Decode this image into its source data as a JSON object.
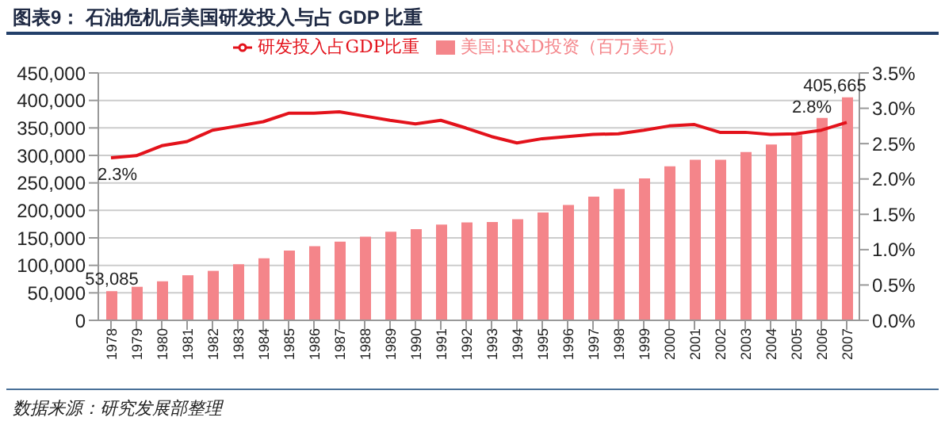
{
  "chart_data": {
    "type": "bar",
    "title": "图表9：  石油危机后美国研发投入与占 GDP 比重",
    "annotations": [
      "数据来源：研究发展部整理"
    ],
    "categories": [
      "1978",
      "1979",
      "1980",
      "1981",
      "1982",
      "1983",
      "1984",
      "1985",
      "1986",
      "1987",
      "1988",
      "1989",
      "1990",
      "1991",
      "1992",
      "1993",
      "1994",
      "1995",
      "1996",
      "1997",
      "1998",
      "1999",
      "2000",
      "2001",
      "2002",
      "2003",
      "2004",
      "2005",
      "2006",
      "2007"
    ],
    "series": [
      {
        "name": "美国:R&D投资（百万美元）",
        "color": "#f4858a",
        "values": [
          53085,
          61000,
          71000,
          82000,
          90000,
          102000,
          113000,
          127000,
          135000,
          143000,
          152000,
          161000,
          166000,
          174000,
          178000,
          179000,
          184000,
          196000,
          210000,
          225000,
          239000,
          258000,
          280000,
          292000,
          292000,
          306000,
          320000,
          337000,
          368000,
          405665
        ],
        "value_labels": [
          "53,085",
          null,
          null,
          null,
          null,
          null,
          null,
          null,
          null,
          null,
          null,
          null,
          null,
          null,
          null,
          null,
          null,
          null,
          null,
          null,
          null,
          null,
          null,
          null,
          null,
          null,
          null,
          null,
          null,
          "405,665"
        ]
      },
      {
        "name": "研发投入占GDP比重",
        "type": "line",
        "axis": "y2",
        "color": "#e3121b",
        "values": [
          2.3,
          2.33,
          2.47,
          2.53,
          2.69,
          2.75,
          2.81,
          2.93,
          2.93,
          2.95,
          2.89,
          2.83,
          2.78,
          2.83,
          2.72,
          2.6,
          2.51,
          2.57,
          2.6,
          2.63,
          2.64,
          2.69,
          2.75,
          2.77,
          2.66,
          2.66,
          2.63,
          2.64,
          2.69,
          2.8
        ],
        "value_labels": [
          "2.3%",
          null,
          null,
          null,
          null,
          null,
          null,
          null,
          null,
          null,
          null,
          null,
          null,
          null,
          null,
          null,
          null,
          null,
          null,
          null,
          null,
          null,
          null,
          null,
          null,
          null,
          null,
          null,
          null,
          "2.8%"
        ]
      }
    ],
    "ylim": [
      0,
      450000
    ],
    "yticks": [
      {
        "value": 0,
        "label": "0"
      },
      {
        "value": 50000,
        "label": "50,000"
      },
      {
        "value": 100000,
        "label": "100,000"
      },
      {
        "value": 150000,
        "label": "150,000"
      },
      {
        "value": 200000,
        "label": "200,000"
      },
      {
        "value": 250000,
        "label": "250,000"
      },
      {
        "value": 300000,
        "label": "300,000"
      },
      {
        "value": 350000,
        "label": "350,000"
      },
      {
        "value": 400000,
        "label": "400,000"
      },
      {
        "value": 450000,
        "label": "450,000"
      }
    ],
    "y2lim": [
      0,
      3.5
    ],
    "y2ticks": [
      {
        "value": 0,
        "label": "0.0%"
      },
      {
        "value": 0.5,
        "label": "0.5%"
      },
      {
        "value": 1,
        "label": "1.0%"
      },
      {
        "value": 1.5,
        "label": "1.5%"
      },
      {
        "value": 2,
        "label": "2.0%"
      },
      {
        "value": 2.5,
        "label": "2.5%"
      },
      {
        "value": 3,
        "label": "3.0%"
      },
      {
        "value": 3.5,
        "label": "3.5%"
      }
    ],
    "grid": "y",
    "legend": "top",
    "marker": "none"
  }
}
